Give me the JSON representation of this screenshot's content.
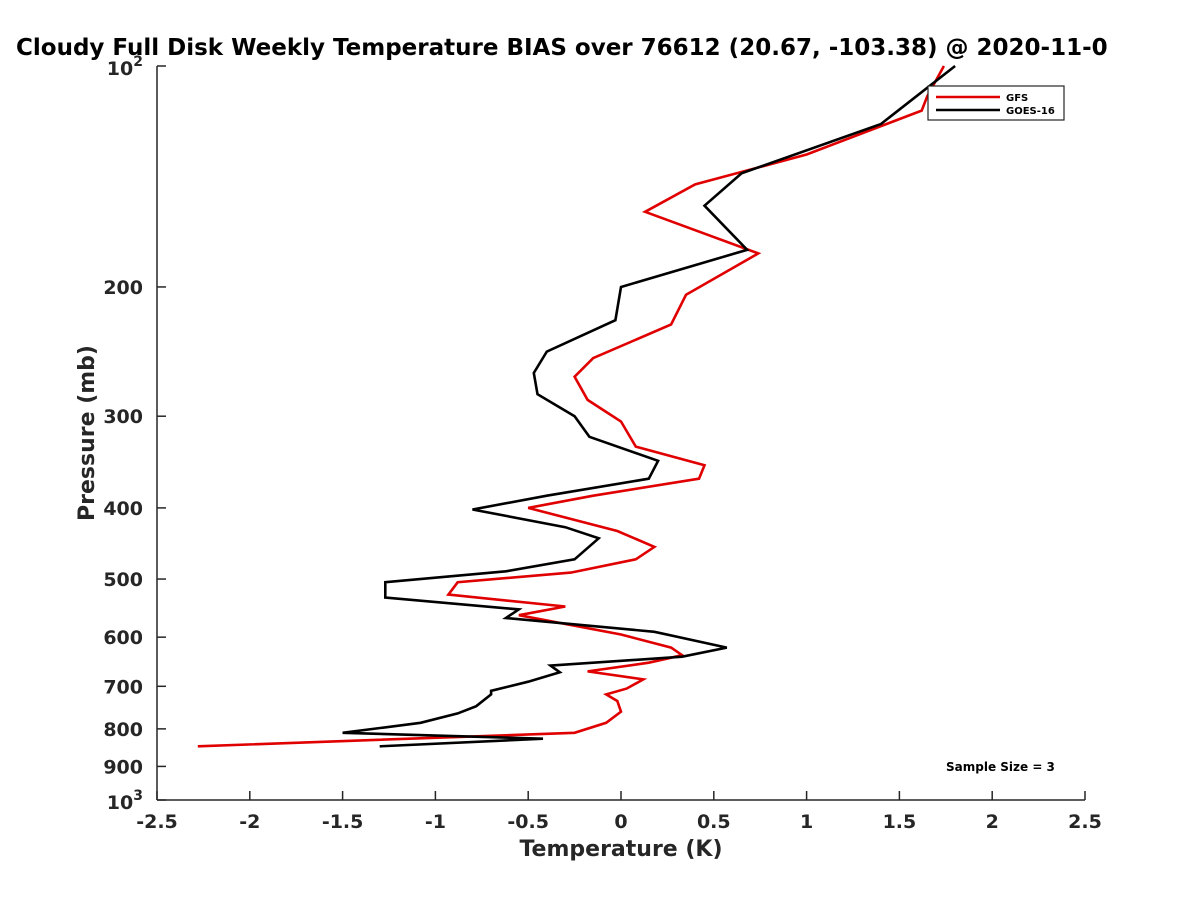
{
  "chart_data": {
    "type": "line",
    "title": "Cloudy Full Disk Weekly Temperature BIAS over 76612 (20.67, -103.38) @ 2020-11-0",
    "xlabel": "Temperature (K)",
    "ylabel": "Pressure (mb)",
    "xlim": [
      -2.5,
      2.5
    ],
    "ylim": [
      100,
      1000
    ],
    "yscale": "log",
    "y_reversed": true,
    "x_ticks": [
      -2.5,
      -2,
      -1.5,
      -1,
      -0.5,
      0,
      0.5,
      1,
      1.5,
      2,
      2.5
    ],
    "x_tick_labels": [
      "-2.5",
      "-2",
      "-1.5",
      "-1",
      "-0.5",
      "0",
      "0.5",
      "1",
      "1.5",
      "2",
      "2.5"
    ],
    "y_ticks": [
      {
        "value": 200,
        "label": "200"
      },
      {
        "value": 300,
        "label": "300"
      },
      {
        "value": 400,
        "label": "400"
      },
      {
        "value": 500,
        "label": "500"
      },
      {
        "value": 600,
        "label": "600"
      },
      {
        "value": 700,
        "label": "700"
      },
      {
        "value": 800,
        "label": "800"
      },
      {
        "value": 900,
        "label": "900"
      }
    ],
    "y_decade_ticks": [
      {
        "value": 100,
        "base": "10",
        "exp": "2"
      },
      {
        "value": 1000,
        "base": "10",
        "exp": "3"
      }
    ],
    "legend_position": "top-right",
    "grid": false,
    "annotation": "Sample Size = 3",
    "series": [
      {
        "name": "GFS",
        "color": "#e00000",
        "points": [
          [
            1.74,
            100
          ],
          [
            1.65,
            110
          ],
          [
            1.62,
            115
          ],
          [
            1.0,
            132
          ],
          [
            0.4,
            145
          ],
          [
            0.13,
            158
          ],
          [
            0.74,
            180
          ],
          [
            0.35,
            205
          ],
          [
            0.27,
            225
          ],
          [
            -0.15,
            250
          ],
          [
            -0.25,
            265
          ],
          [
            -0.18,
            285
          ],
          [
            0.0,
            305
          ],
          [
            0.08,
            330
          ],
          [
            0.45,
            350
          ],
          [
            0.42,
            365
          ],
          [
            -0.15,
            385
          ],
          [
            -0.5,
            400
          ],
          [
            -0.02,
            430
          ],
          [
            0.18,
            452
          ],
          [
            0.08,
            470
          ],
          [
            -0.27,
            490
          ],
          [
            -0.88,
            505
          ],
          [
            -0.93,
            525
          ],
          [
            -0.3,
            545
          ],
          [
            -0.55,
            560
          ],
          [
            0.0,
            595
          ],
          [
            0.27,
            620
          ],
          [
            0.33,
            635
          ],
          [
            0.15,
            650
          ],
          [
            -0.18,
            668
          ],
          [
            0.12,
            685
          ],
          [
            0.03,
            705
          ],
          [
            -0.08,
            718
          ],
          [
            -0.02,
            733
          ],
          [
            0.0,
            758
          ],
          [
            -0.08,
            785
          ],
          [
            -0.25,
            810
          ],
          [
            -2.28,
            845
          ]
        ]
      },
      {
        "name": "GOES-16",
        "color": "#000000",
        "points": [
          [
            1.8,
            100
          ],
          [
            1.4,
            120
          ],
          [
            0.65,
            140
          ],
          [
            0.45,
            155
          ],
          [
            0.68,
            178
          ],
          [
            0.0,
            200
          ],
          [
            -0.03,
            222
          ],
          [
            -0.4,
            245
          ],
          [
            -0.47,
            262
          ],
          [
            -0.45,
            280
          ],
          [
            -0.25,
            300
          ],
          [
            -0.17,
            320
          ],
          [
            0.2,
            345
          ],
          [
            0.15,
            365
          ],
          [
            -0.4,
            385
          ],
          [
            -0.8,
            402
          ],
          [
            -0.3,
            425
          ],
          [
            -0.12,
            440
          ],
          [
            -0.25,
            470
          ],
          [
            -0.62,
            488
          ],
          [
            -1.27,
            505
          ],
          [
            -1.27,
            530
          ],
          [
            -0.55,
            550
          ],
          [
            -0.62,
            565
          ],
          [
            0.18,
            590
          ],
          [
            0.57,
            620
          ],
          [
            0.33,
            638
          ],
          [
            -0.38,
            656
          ],
          [
            -0.33,
            670
          ],
          [
            -0.5,
            690
          ],
          [
            -0.7,
            710
          ],
          [
            -0.7,
            718
          ],
          [
            -0.78,
            745
          ],
          [
            -0.88,
            762
          ],
          [
            -1.08,
            785
          ],
          [
            -1.5,
            810
          ],
          [
            -0.42,
            825
          ],
          [
            -1.3,
            845
          ]
        ]
      }
    ]
  }
}
